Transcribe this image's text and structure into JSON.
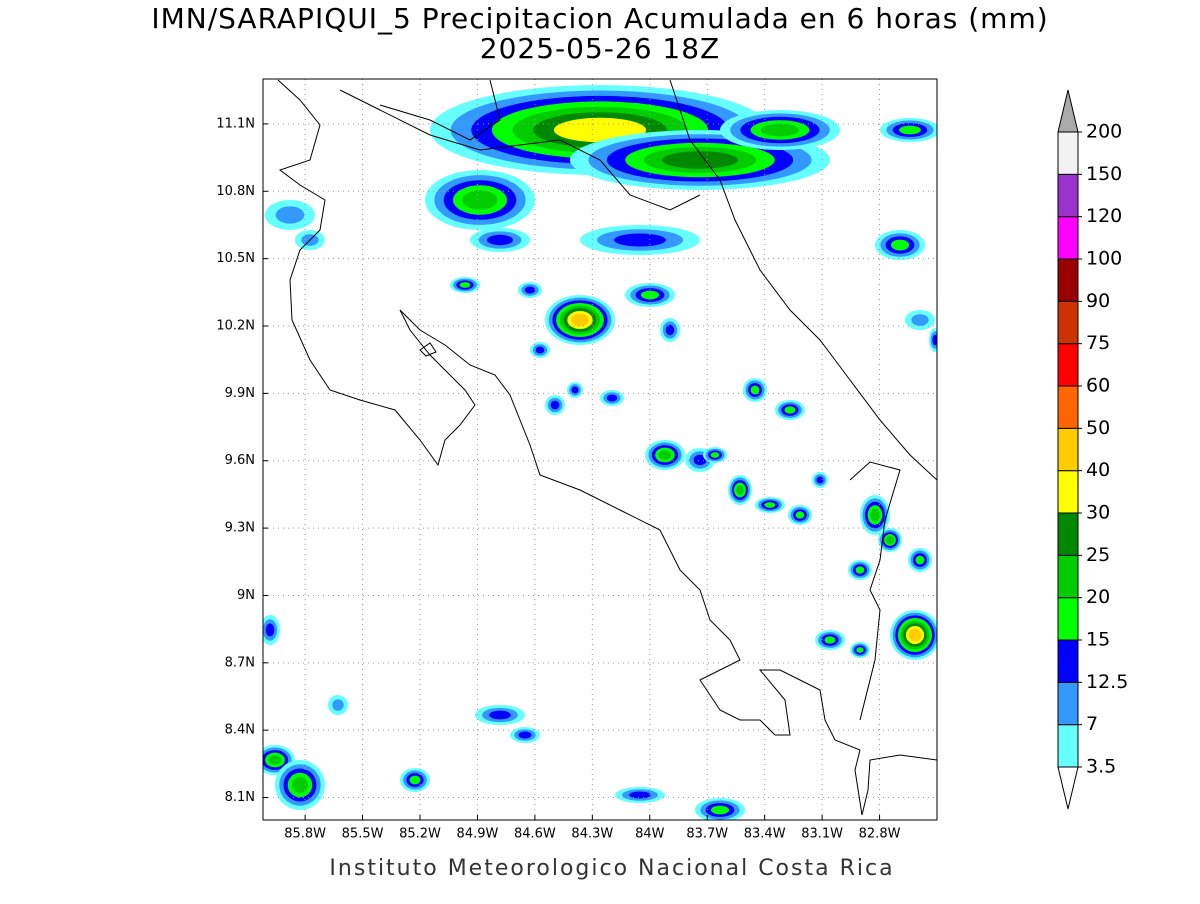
{
  "title": "IMN/SARAPIQUI_5 Precipitacion Acumulada en 6 horas (mm)",
  "subtitle": "2025-05-26 18Z",
  "map": {
    "xlim": [
      -86.02,
      -82.5
    ],
    "ylim": [
      8.0,
      11.3
    ],
    "xticks": [
      {
        "value": -85.8,
        "label": "85.8W"
      },
      {
        "value": -85.5,
        "label": "85.5W"
      },
      {
        "value": -85.2,
        "label": "85.2W"
      },
      {
        "value": -84.9,
        "label": "84.9W"
      },
      {
        "value": -84.6,
        "label": "84.6W"
      },
      {
        "value": -84.3,
        "label": "84.3W"
      },
      {
        "value": -84.0,
        "label": "84W"
      },
      {
        "value": -83.7,
        "label": "83.7W"
      },
      {
        "value": -83.4,
        "label": "83.4W"
      },
      {
        "value": -83.1,
        "label": "83.1W"
      },
      {
        "value": -82.8,
        "label": "82.8W"
      }
    ],
    "yticks": [
      {
        "value": 11.1,
        "label": "11.1N"
      },
      {
        "value": 10.8,
        "label": "10.8N"
      },
      {
        "value": 10.5,
        "label": "10.5N"
      },
      {
        "value": 10.2,
        "label": "10.2N"
      },
      {
        "value": 9.9,
        "label": "9.9N"
      },
      {
        "value": 9.6,
        "label": "9.6N"
      },
      {
        "value": 9.3,
        "label": "9.3N"
      },
      {
        "value": 9.0,
        "label": "9N"
      },
      {
        "value": 8.7,
        "label": "8.7N"
      },
      {
        "value": 8.4,
        "label": "8.4N"
      },
      {
        "value": 8.1,
        "label": "8.1N"
      }
    ],
    "grid": true
  },
  "colorbar": {
    "levels": [
      3.5,
      7,
      12.5,
      15,
      20,
      25,
      30,
      40,
      50,
      60,
      75,
      90,
      100,
      120,
      150,
      200
    ],
    "colors": [
      "#66ffff",
      "#3399ff",
      "#0000ff",
      "#00ff00",
      "#00cc00",
      "#008800",
      "#ffff00",
      "#ffcc00",
      "#ff6600",
      "#ff0000",
      "#cc3300",
      "#990000",
      "#ff00ff",
      "#9933cc",
      "#f2f2f2"
    ],
    "over_color": "#aaaaaa",
    "under_color": "#ffffff"
  },
  "footer": "Instituto Meteorologico Nacional Costa Rica"
}
